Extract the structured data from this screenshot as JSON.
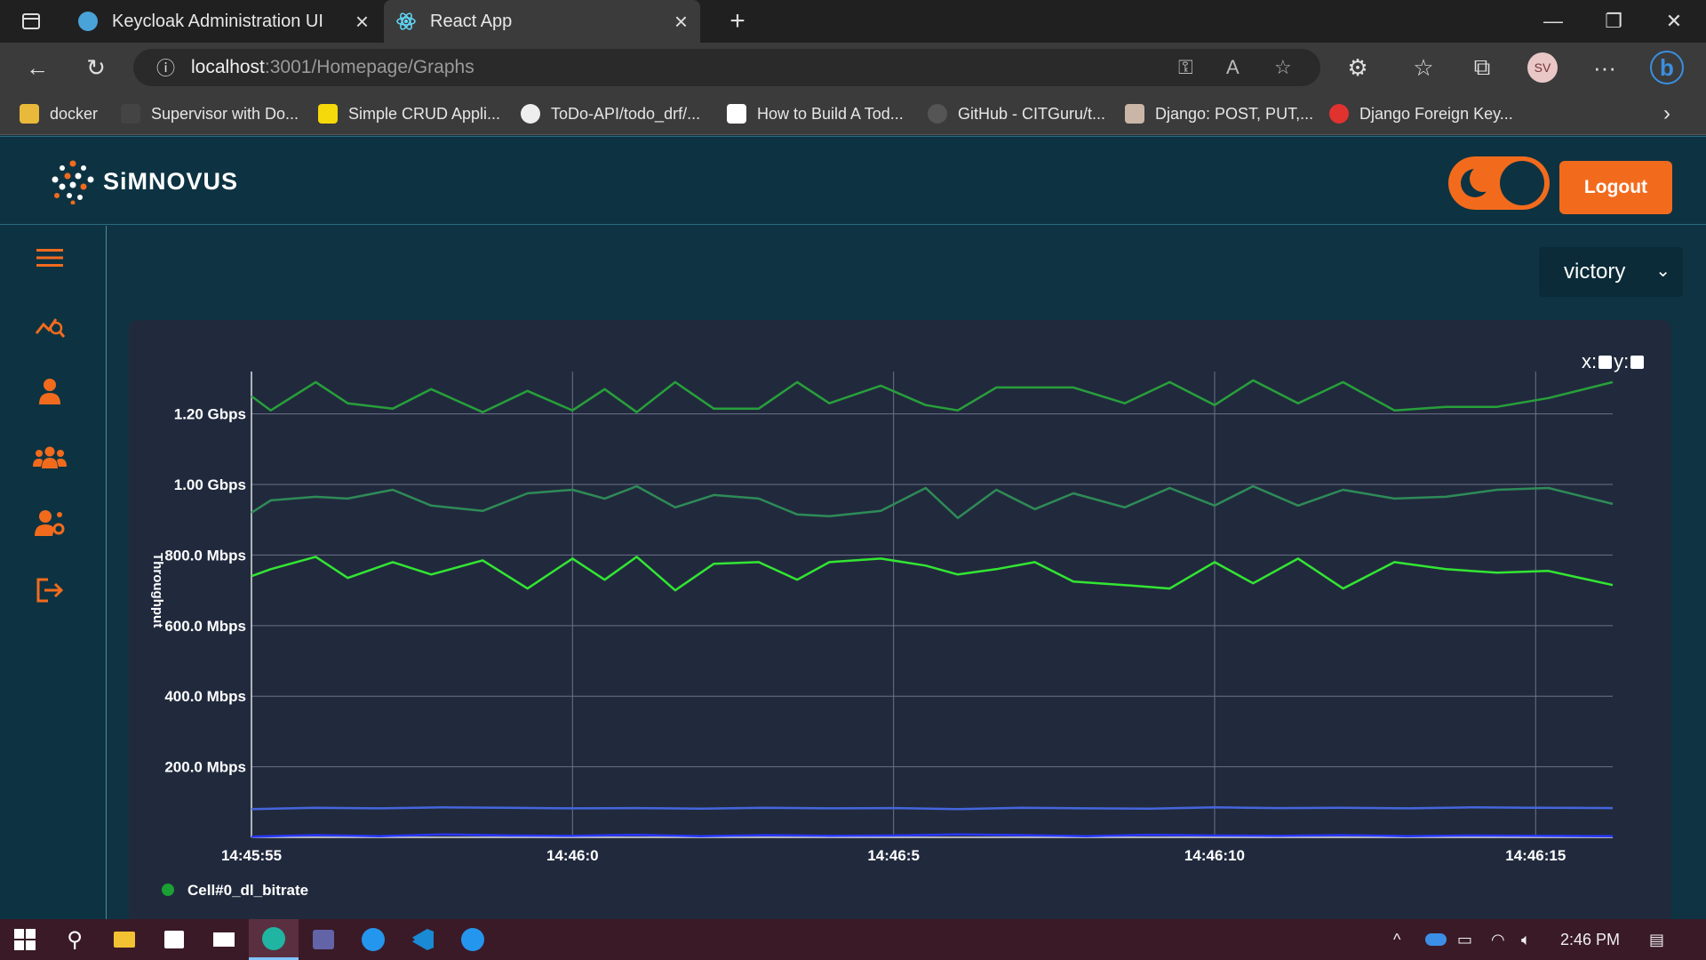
{
  "browser": {
    "tabs": [
      {
        "title": "Keycloak Administration UI",
        "active": false
      },
      {
        "title": "React App",
        "active": true
      }
    ],
    "new_tab": "+",
    "url_host": "localhost",
    "url_path": ":3001/Homepage/Graphs",
    "profile_initials": "SV",
    "bookmarks": [
      {
        "label": "docker",
        "icon": "folder-icon"
      },
      {
        "label": "Supervisor with Do...",
        "icon": "site-icon"
      },
      {
        "label": "Simple CRUD Appli...",
        "icon": "site-icon"
      },
      {
        "label": "ToDo-API/todo_drf/...",
        "icon": "github-icon"
      },
      {
        "label": "How to Build A Tod...",
        "icon": "medium-icon"
      },
      {
        "label": "GitHub - CITGuru/t...",
        "icon": "github-icon"
      },
      {
        "label": "Django: POST, PUT,...",
        "icon": "site-icon"
      },
      {
        "label": "Django Foreign Key...",
        "icon": "site-icon"
      }
    ]
  },
  "app": {
    "brand": "SiMNOVUS",
    "logout_label": "Logout",
    "chart_library": "victory",
    "zoom_x_label": "x:",
    "zoom_y_label": "y:",
    "sidebar_items": [
      "menu-icon",
      "graphs-icon",
      "user-icon",
      "users-group-icon",
      "user-settings-icon",
      "sign-out-icon"
    ],
    "colors": {
      "accent": "#f26b1d",
      "background": "#0f3342",
      "card": "#212a3d"
    }
  },
  "chart_data": {
    "type": "line",
    "ylabel": "Throughput",
    "y_tick_labels": [
      "200.0 Mbps",
      "400.0 Mbps",
      "600.0 Mbps",
      "800.0 Mbps",
      "1.00 Gbps",
      "1.20 Gbps"
    ],
    "y_tick_values_mbps": [
      200,
      400,
      600,
      800,
      1000,
      1200
    ],
    "ylim_mbps": [
      0,
      1320
    ],
    "x_tick_labels": [
      "14:45:55",
      "14:46:0",
      "14:46:5",
      "14:46:10",
      "14:46:15"
    ],
    "x_tick_seconds": [
      0,
      5,
      10,
      15,
      20
    ],
    "xlim_seconds": [
      0,
      21.2
    ],
    "legend": [
      {
        "name": "Cell#0_dl_bitrate",
        "color": "#1aa033"
      }
    ],
    "series": [
      {
        "color": "#27a03a",
        "x": [
          0,
          0.3,
          1,
          1.5,
          2.2,
          2.8,
          3.6,
          4.3,
          5,
          5.5,
          6,
          6.6,
          7.2,
          7.9,
          8.5,
          9,
          9.8,
          10.5,
          11,
          11.6,
          12.2,
          12.8,
          13.6,
          14.3,
          15,
          15.6,
          16.3,
          17,
          17.8,
          18.6,
          19.4,
          20.2,
          21.2
        ],
        "y": [
          1250,
          1210,
          1290,
          1230,
          1215,
          1270,
          1205,
          1265,
          1210,
          1270,
          1205,
          1290,
          1215,
          1215,
          1290,
          1230,
          1280,
          1225,
          1210,
          1275,
          1275,
          1275,
          1230,
          1290,
          1225,
          1295,
          1230,
          1290,
          1210,
          1220,
          1220,
          1245,
          1290
        ]
      },
      {
        "color": "#2e8b57",
        "x": [
          0,
          0.3,
          1,
          1.5,
          2.2,
          2.8,
          3.6,
          4.3,
          5,
          5.5,
          6,
          6.6,
          7.2,
          7.9,
          8.5,
          9,
          9.8,
          10.5,
          11,
          11.6,
          12.2,
          12.8,
          13.6,
          14.3,
          15,
          15.6,
          16.3,
          17,
          17.8,
          18.6,
          19.4,
          20.2,
          21.2
        ],
        "y": [
          920,
          955,
          965,
          960,
          985,
          940,
          925,
          975,
          985,
          960,
          995,
          935,
          970,
          960,
          915,
          910,
          925,
          990,
          905,
          985,
          930,
          975,
          935,
          990,
          940,
          995,
          940,
          985,
          960,
          965,
          985,
          990,
          945
        ]
      },
      {
        "color": "#32e632",
        "x": [
          0,
          0.3,
          1,
          1.5,
          2.2,
          2.8,
          3.6,
          4.3,
          5,
          5.5,
          6,
          6.6,
          7.2,
          7.9,
          8.5,
          9,
          9.8,
          10.5,
          11,
          11.6,
          12.2,
          12.8,
          13.6,
          14.3,
          15,
          15.6,
          16.3,
          17,
          17.8,
          18.6,
          19.4,
          20.2,
          21.2
        ],
        "y": [
          740,
          760,
          795,
          735,
          780,
          745,
          785,
          705,
          790,
          730,
          795,
          700,
          775,
          780,
          730,
          780,
          790,
          770,
          745,
          760,
          780,
          725,
          715,
          705,
          780,
          720,
          790,
          705,
          780,
          760,
          750,
          755,
          715
        ]
      },
      {
        "color": "#4466dd",
        "x": [
          0,
          1,
          2,
          3,
          4,
          5,
          6,
          7,
          8,
          9,
          10,
          11,
          12,
          13,
          14,
          15,
          16,
          17,
          18,
          19,
          20,
          21.2
        ],
        "y": [
          80,
          84,
          82,
          85,
          84,
          82,
          83,
          81,
          84,
          82,
          83,
          80,
          84,
          82,
          81,
          85,
          83,
          84,
          82,
          85,
          84,
          83
        ]
      },
      {
        "color": "#2a38ff",
        "x": [
          0,
          1,
          2,
          3,
          4,
          5,
          6,
          7,
          8,
          9,
          10,
          11,
          12,
          13,
          14,
          15,
          16,
          17,
          18,
          19,
          20,
          21.2
        ],
        "y": [
          2,
          6,
          3,
          8,
          5,
          4,
          7,
          3,
          6,
          4,
          5,
          8,
          6,
          3,
          7,
          5,
          4,
          6,
          3,
          5,
          4,
          3
        ]
      }
    ]
  },
  "taskbar": {
    "clock": "2:46 PM",
    "apps": [
      "windows-start-icon",
      "search-icon",
      "file-explorer-icon",
      "store-icon",
      "mail-icon",
      "edge-icon",
      "teams-icon",
      "docker-icon",
      "vscode-icon",
      "docker-icon"
    ]
  }
}
